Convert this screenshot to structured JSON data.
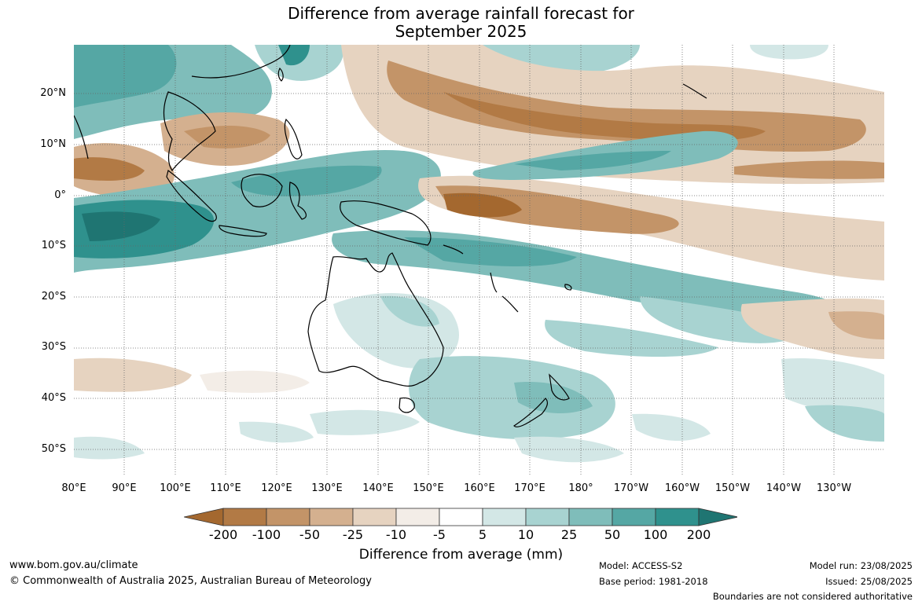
{
  "title": {
    "line1": "Difference from average rainfall forecast for",
    "line2": "September 2025"
  },
  "map": {
    "lat_labels": [
      "20°N",
      "10°N",
      "0°",
      "10°S",
      "20°S",
      "30°S",
      "40°S",
      "50°S"
    ],
    "lon_labels": [
      "80°E",
      "90°E",
      "100°E",
      "110°E",
      "120°E",
      "130°E",
      "140°E",
      "150°E",
      "160°E",
      "170°E",
      "180°",
      "170°W",
      "160°W",
      "150°W",
      "140°W",
      "130°W"
    ]
  },
  "colorbar": {
    "labels": [
      "-200",
      "-100",
      "-50",
      "-25",
      "-10",
      "-5",
      "5",
      "10",
      "25",
      "50",
      "100",
      "200"
    ],
    "colors": [
      "#a4682f",
      "#b27a45",
      "#c39468",
      "#d4b08f",
      "#e6d3c0",
      "#f3ede7",
      "#ffffff",
      "#d3e7e6",
      "#a8d3d1",
      "#7fbdba",
      "#55a7a4",
      "#2f918d",
      "#1f7572"
    ],
    "title": "Difference from average (mm)"
  },
  "footer": {
    "website": "www.bom.gov.au/climate",
    "copyright": "© Commonwealth of Australia 2025, Australian Bureau of Meteorology",
    "model": "Model: ACCESS-S2",
    "base_period": "Base period: 1981-2018",
    "model_run": "Model run: 23/08/2025",
    "issued": "Issued: 25/08/2025",
    "boundaries": "Boundaries are not considered authoritative"
  }
}
